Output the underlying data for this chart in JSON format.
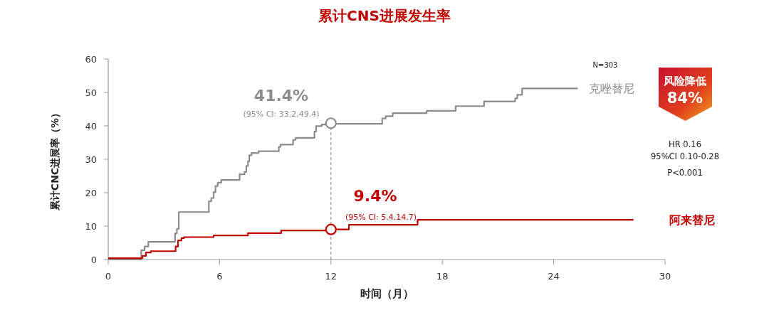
{
  "chart_data": {
    "type": "step",
    "title": "累计CNS进展发生率",
    "xlabel": "时间（月）",
    "ylabel": "累计CNC进展率（%）",
    "xlim": [
      0,
      30
    ],
    "xticks": [
      0,
      6,
      12,
      18,
      24,
      30
    ],
    "ylim": [
      0,
      60
    ],
    "yticks": [
      0,
      10,
      20,
      30,
      40,
      50,
      60
    ],
    "grid": false,
    "legend": false,
    "line_style": "solid",
    "series": [
      {
        "name": "克唑替尼",
        "color": "#8c8c8c",
        "x": [
          0,
          1.78,
          1.96,
          2.16,
          3.6,
          3.7,
          3.8,
          5.42,
          5.55,
          5.68,
          5.78,
          5.9,
          6.09,
          7.08,
          7.34,
          7.44,
          7.53,
          7.6,
          7.72,
          8.1,
          9.19,
          9.28,
          9.96,
          10.1,
          11.11,
          11.2,
          11.5,
          11.74,
          12,
          14.76,
          14.95,
          15.33,
          17.16,
          18.72,
          20.25,
          21.92,
          22.04,
          22.3,
          25.3
        ],
        "values": [
          0,
          2.8,
          3.9,
          5.3,
          7.8,
          9.2,
          14.2,
          17.4,
          18.4,
          20.2,
          22,
          23,
          23.8,
          25.5,
          26.2,
          28,
          29.4,
          31.2,
          31.9,
          32.4,
          33.7,
          34.4,
          35.8,
          36.4,
          38.3,
          39.9,
          40.4,
          40.8,
          40.6,
          42.2,
          42.9,
          43.8,
          44.5,
          45.9,
          47.3,
          48.2,
          49.3,
          51.2,
          51.2
        ]
      },
      {
        "name": "阿来替尼",
        "color": "#c00000",
        "x": [
          0,
          1.84,
          2.03,
          2.29,
          3.63,
          3.76,
          3.95,
          4.08,
          5.68,
          7.53,
          9.32,
          12,
          12.97,
          16.67,
          28.3
        ],
        "values": [
          0.4,
          1.1,
          2.1,
          2.5,
          3.9,
          5.7,
          6.4,
          6.7,
          7.2,
          7.9,
          8.7,
          9.0,
          10.4,
          11.9,
          11.9
        ]
      },
      {
        "type": "scatter",
        "marker": "circle",
        "x": [
          12,
          12
        ],
        "values": [
          40.8,
          9.0
        ],
        "colors": [
          "#8c8c8c",
          "#c00000"
        ]
      }
    ],
    "ref_lines": [
      {
        "axis": "x",
        "value": 12,
        "color": "#808080",
        "line_style": "dashed"
      }
    ],
    "annotations": [
      "41.4%",
      "(95% CI: 33.2,49.4)",
      "9.4%",
      "(95% CI: 5.4.14.7)",
      "N=303",
      "风险降低",
      "84%",
      "HR 0.16",
      "95%CI 0.10-0.28",
      "P<0.001"
    ]
  }
}
